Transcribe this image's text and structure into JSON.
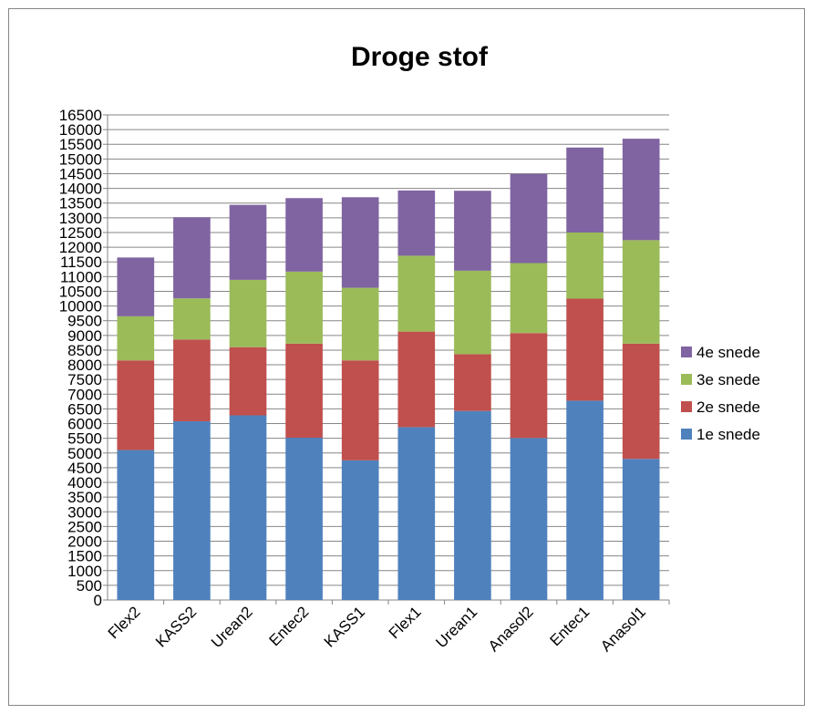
{
  "chart_data": {
    "type": "bar",
    "stacked": true,
    "title": "Droge stof",
    "xlabel": "",
    "ylabel": "",
    "ylim": [
      0,
      16500
    ],
    "ytick_step": 500,
    "grid": true,
    "legend_position": "right",
    "categories": [
      "Flex2",
      "KASS2",
      "Urean2",
      "Entec2",
      "KASS1",
      "Flex1",
      "Urean1",
      "Anasol2",
      "Entec1",
      "Anasol1"
    ],
    "series": [
      {
        "name": "1e snede",
        "color": "#4F81BD",
        "values": [
          5100,
          6080,
          6280,
          5520,
          4750,
          5880,
          6430,
          5510,
          6780,
          4800
        ]
      },
      {
        "name": "2e snede",
        "color": "#C0504D",
        "values": [
          3050,
          2780,
          2320,
          3200,
          3400,
          3250,
          1930,
          3570,
          3470,
          3920
        ]
      },
      {
        "name": "3e snede",
        "color": "#9BBB59",
        "values": [
          1500,
          1400,
          2290,
          2450,
          2470,
          2580,
          2840,
          2380,
          2250,
          3520
        ]
      },
      {
        "name": "4e snede",
        "color": "#8064A2",
        "values": [
          2000,
          2760,
          2550,
          2500,
          3080,
          2220,
          2720,
          3030,
          2890,
          3450
        ]
      }
    ]
  }
}
